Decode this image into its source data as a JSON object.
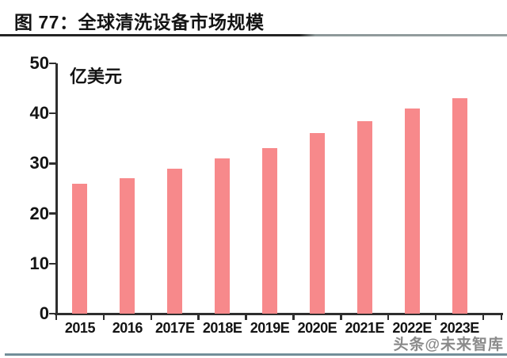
{
  "header": {
    "title": "图 77：全球清洗设备市场规模"
  },
  "watermark": "头条@未来智库",
  "colors": {
    "bar": "#f7898b",
    "axis": "#2e2e2e",
    "text": "#141414",
    "title_rule_dark": "#242424",
    "title_rule_light": "#96a0a1",
    "bottom_rule": "#5d7e8b",
    "watermark": "#696969"
  },
  "chart_data": {
    "type": "bar",
    "title": "图 77：全球清洗设备市场规模",
    "unit_label": "亿美元",
    "categories": [
      "2015",
      "2016",
      "2017E",
      "2018E",
      "2019E",
      "2020E",
      "2021E",
      "2022E",
      "2023E"
    ],
    "values": [
      26,
      27,
      29,
      31,
      33,
      36,
      38.5,
      41,
      43
    ],
    "xlabel": "",
    "ylabel": "亿美元",
    "ylim": [
      0,
      50
    ],
    "yticks": [
      0,
      10,
      20,
      30,
      40,
      50
    ],
    "grid": "off",
    "legend": "none",
    "bar_color": "#f7898b"
  }
}
